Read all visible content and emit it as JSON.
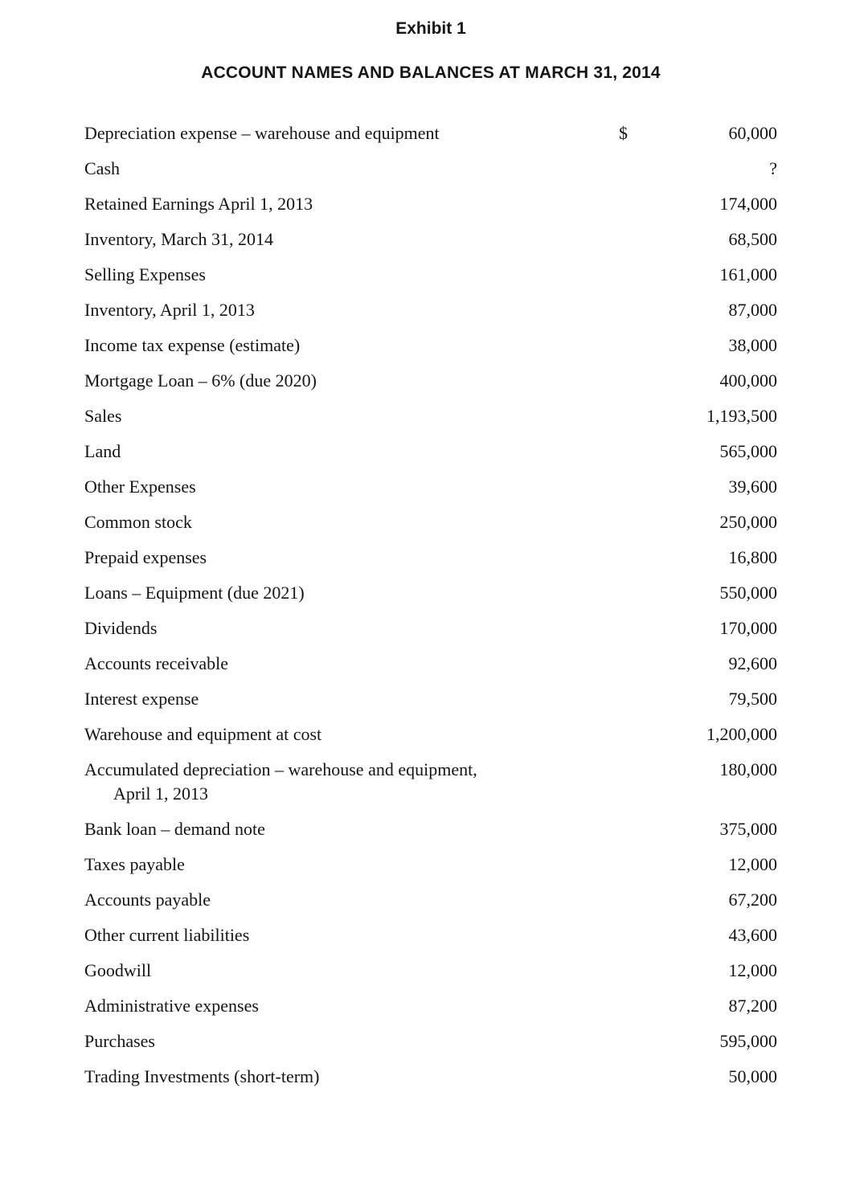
{
  "exhibit": {
    "title": "Exhibit 1",
    "subtitle": "ACCOUNT NAMES AND BALANCES AT MARCH 31, 2014"
  },
  "table": {
    "rows": [
      {
        "label": "Depreciation expense – warehouse and equipment",
        "currency": "$",
        "amount": "60,000"
      },
      {
        "label": "Cash",
        "amount": "?"
      },
      {
        "label": "Retained Earnings April 1, 2013",
        "amount": "174,000"
      },
      {
        "label": "Inventory, March 31, 2014",
        "amount": "68,500"
      },
      {
        "label": "Selling Expenses",
        "amount": "161,000"
      },
      {
        "label": "Inventory, April 1, 2013",
        "amount": "87,000"
      },
      {
        "label": "Income tax expense (estimate)",
        "amount": "38,000"
      },
      {
        "label": "Mortgage Loan – 6% (due 2020)",
        "amount": "400,000"
      },
      {
        "label": "Sales",
        "amount": "1,193,500"
      },
      {
        "label": "Land",
        "amount": "565,000"
      },
      {
        "label": "Other Expenses",
        "amount": "39,600"
      },
      {
        "label": "Common stock",
        "amount": "250,000"
      },
      {
        "label": "Prepaid expenses",
        "amount": "16,800"
      },
      {
        "label": "Loans – Equipment (due 2021)",
        "amount": "550,000"
      },
      {
        "label": "Dividends",
        "amount": "170,000"
      },
      {
        "label": "Accounts receivable",
        "amount": "92,600"
      },
      {
        "label": "Interest expense",
        "amount": "79,500"
      },
      {
        "label": "Warehouse and equipment at cost",
        "amount": "1,200,000"
      },
      {
        "label": "Accumulated depreciation – warehouse and equipment,",
        "label2": "April 1, 2013",
        "amount": "180,000"
      },
      {
        "label": "Bank loan – demand note",
        "amount": "375,000"
      },
      {
        "label": "Taxes payable",
        "amount": "12,000"
      },
      {
        "label": "Accounts payable",
        "amount": "67,200"
      },
      {
        "label": "Other current liabilities",
        "amount": "43,600"
      },
      {
        "label": "Goodwill",
        "amount": "12,000"
      },
      {
        "label": "Administrative expenses",
        "amount": "87,200"
      },
      {
        "label": "Purchases",
        "amount": "595,000"
      },
      {
        "label": "Trading Investments (short-term)",
        "amount": "50,000"
      }
    ]
  }
}
